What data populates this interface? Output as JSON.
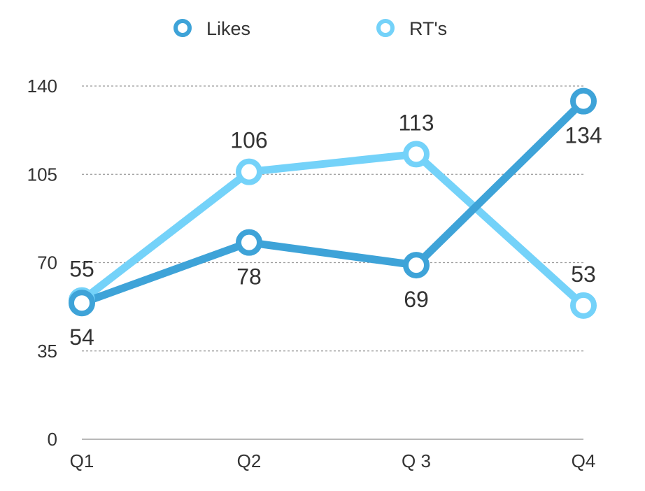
{
  "chart_data": {
    "type": "line",
    "categories": [
      "Q1",
      "Q2",
      "Q 3",
      "Q4"
    ],
    "y_ticks": [
      "0",
      "35",
      "70",
      "105",
      "140"
    ],
    "ylim": [
      0,
      140
    ],
    "grid": true,
    "legend_position": "top-center",
    "series": [
      {
        "name": "Likes",
        "values": [
          54,
          78,
          69,
          134
        ],
        "color": "#3ea3d8",
        "labels": [
          "54",
          "78",
          "69",
          "134"
        ]
      },
      {
        "name": "RT's",
        "values": [
          55,
          106,
          113,
          53
        ],
        "color": "#74d2f9",
        "labels": [
          "55",
          "106",
          "113",
          "53"
        ]
      }
    ]
  }
}
